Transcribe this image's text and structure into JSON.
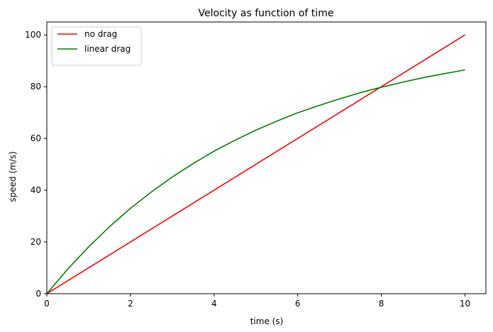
{
  "chart_data": {
    "type": "line",
    "title": "Velocity as function of time",
    "xlabel": "time (s)",
    "ylabel": "speed (m/s)",
    "xlim": [
      0,
      10.5
    ],
    "ylim": [
      0,
      105
    ],
    "xticks": [
      0,
      2,
      4,
      6,
      8,
      10
    ],
    "yticks": [
      0,
      20,
      40,
      60,
      80,
      100
    ],
    "grid": false,
    "legend_position": "upper-left",
    "series": [
      {
        "name": "no drag",
        "color": "#ff0000",
        "x": [
          0,
          10
        ],
        "y": [
          0,
          100
        ]
      },
      {
        "name": "linear drag",
        "color": "#008000",
        "x": [
          0,
          0.5,
          1,
          1.5,
          2,
          2.5,
          3,
          3.5,
          4,
          4.5,
          5,
          5.5,
          6,
          6.5,
          7,
          7.5,
          8,
          8.5,
          9,
          9.5,
          10
        ],
        "y": [
          0,
          9.5,
          18.1,
          25.9,
          33.0,
          39.3,
          45.1,
          50.3,
          55.1,
          59.3,
          63.2,
          66.7,
          69.9,
          72.7,
          75.3,
          77.7,
          79.8,
          81.7,
          83.5,
          85.0,
          86.5
        ]
      }
    ]
  }
}
